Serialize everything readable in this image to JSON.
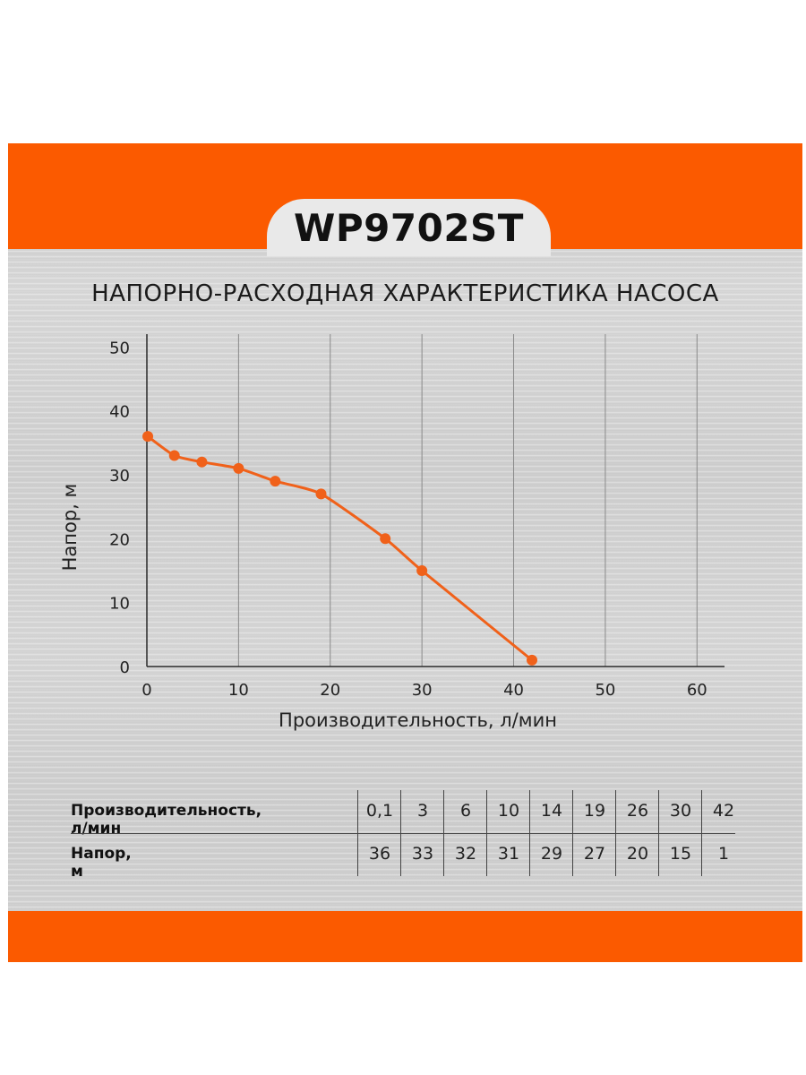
{
  "model": "WP9702ST",
  "colors": {
    "accent": "#fb5a00",
    "line": "#f0611a",
    "tab_bg": "#e9e9e9"
  },
  "chart_data": {
    "type": "line",
    "title": "НАПОРНО-РАСХОДНАЯ ХАРАКТЕРИСТИКА НАСОСА",
    "xlabel": "Производительность, л/мин",
    "ylabel": "Напор, м",
    "xlim": [
      0,
      63
    ],
    "ylim": [
      0,
      52
    ],
    "x_ticks": [
      "0",
      "10",
      "20",
      "30",
      "40",
      "50",
      "60"
    ],
    "y_ticks": [
      "0",
      "10",
      "20",
      "30",
      "40",
      "50"
    ],
    "grid": "vertical",
    "series": [
      {
        "x": [
          0.1,
          3,
          6,
          10,
          14,
          19,
          26,
          30,
          42
        ],
        "y": [
          36,
          33,
          32,
          31,
          29,
          27,
          20,
          15,
          1
        ]
      }
    ]
  },
  "table": {
    "row1_label": "Производительность, л/мин",
    "row2_label": "Напор, м",
    "flow": [
      "0,1",
      "3",
      "6",
      "10",
      "14",
      "19",
      "26",
      "30",
      "42"
    ],
    "head": [
      "36",
      "33",
      "32",
      "31",
      "29",
      "27",
      "20",
      "15",
      "1"
    ]
  }
}
